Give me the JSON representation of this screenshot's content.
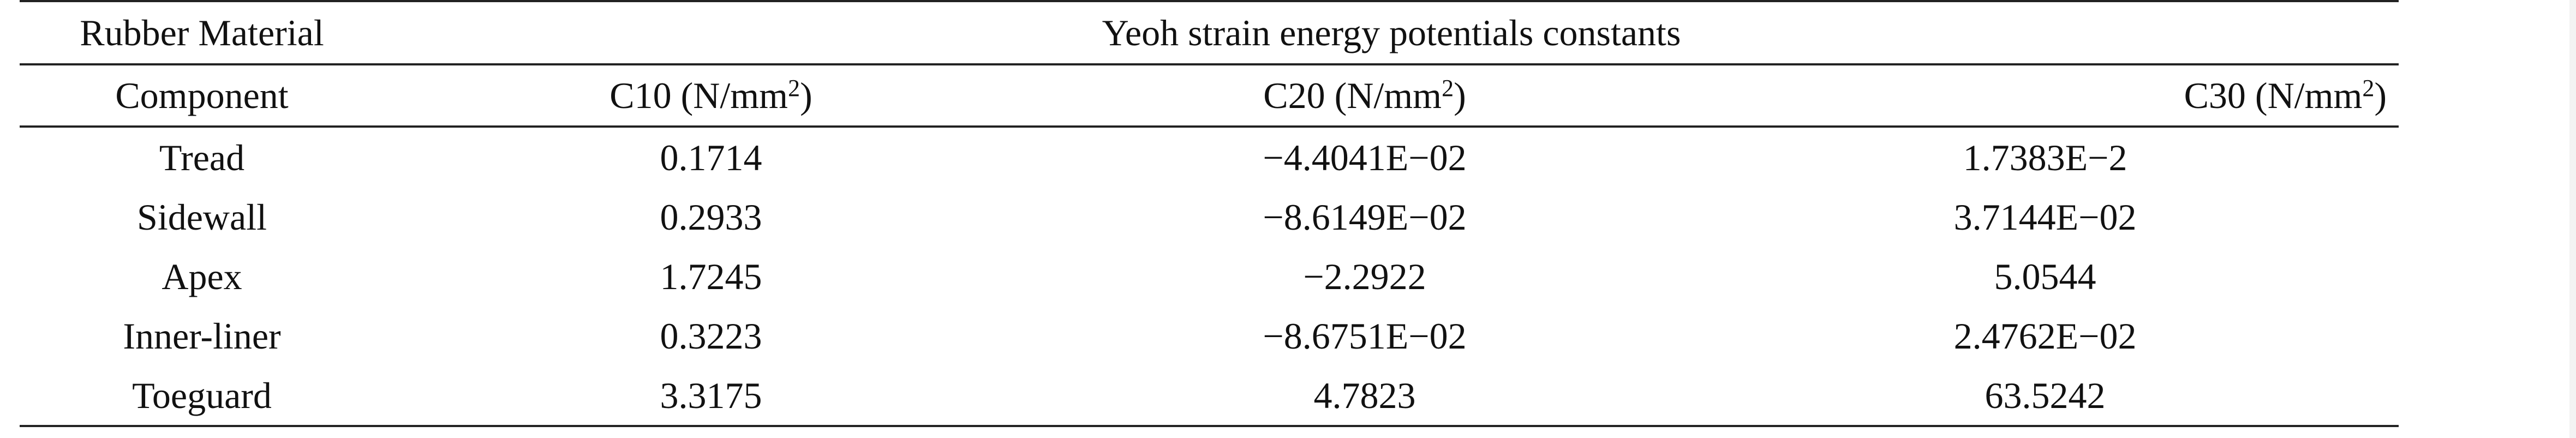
{
  "table": {
    "super_header": {
      "material_label": "Rubber Material",
      "group_label": "Yeoh strain energy potentials constants"
    },
    "columns": [
      {
        "name": "Component"
      },
      {
        "name": "C10 (N/mm",
        "unit_exp": "2",
        "suffix": ")"
      },
      {
        "name": "C20 (N/mm",
        "unit_exp": "2",
        "suffix": ")"
      },
      {
        "name": "C30 (N/mm",
        "unit_exp": "2",
        "suffix": ")"
      }
    ],
    "rows": [
      {
        "component": "Tread",
        "c10": "0.1714",
        "c20": "−4.4041E−02",
        "c30": "1.7383E−2"
      },
      {
        "component": "Sidewall",
        "c10": "0.2933",
        "c20": "−8.6149E−02",
        "c30": "3.7144E−02"
      },
      {
        "component": "Apex",
        "c10": "1.7245",
        "c20": "−2.2922",
        "c30": "5.0544"
      },
      {
        "component": "Inner-liner",
        "c10": "0.3223",
        "c20": "−8.6751E−02",
        "c30": "2.4762E−02"
      },
      {
        "component": "Toeguard",
        "c10": "3.3175",
        "c20": "4.7823",
        "c30": "63.5242"
      }
    ]
  }
}
